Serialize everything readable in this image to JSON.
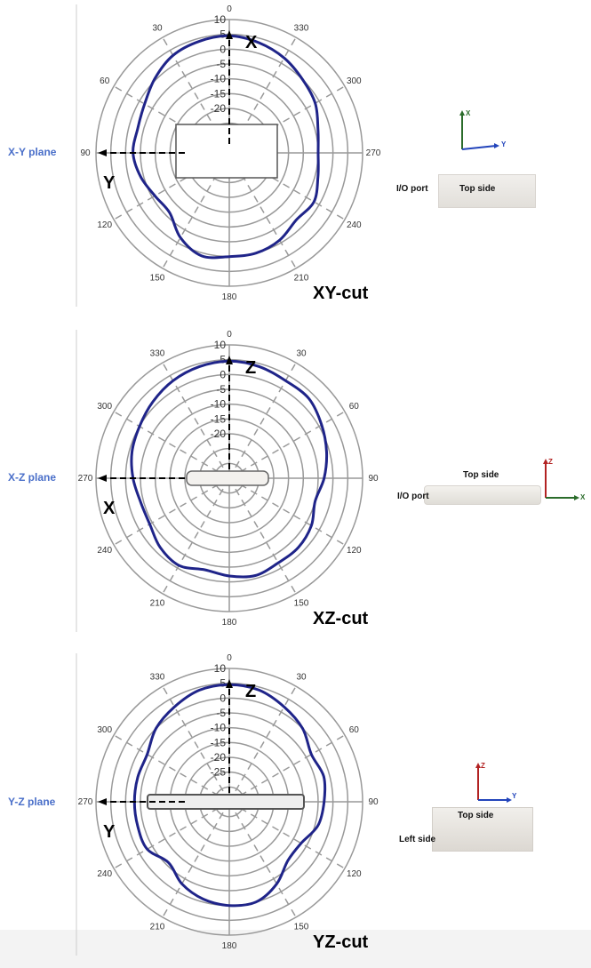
{
  "colors": {
    "plane_label": "#4a6fc9",
    "trace": "#1f2489",
    "grid": "#999999",
    "x_axis": "#2b6c2b",
    "y_axis": "#2244bb",
    "z_axis": "#b22222"
  },
  "chart_data": [
    {
      "type": "polar",
      "plane_label": "X-Y plane",
      "title": "XY-cut",
      "radial_ticks": [
        "10",
        "5",
        "0",
        "-5",
        "-10",
        "-15",
        "-20"
      ],
      "rlim": [
        -35,
        10
      ],
      "angle_direction": "counterclockwise",
      "angle_labels": [
        {
          "angle": 0,
          "label": "0"
        },
        {
          "angle": 30,
          "label": "30"
        },
        {
          "angle": 60,
          "label": "60"
        },
        {
          "angle": 90,
          "label": "90"
        },
        {
          "angle": 120,
          "label": "120"
        },
        {
          "angle": 150,
          "label": "150"
        },
        {
          "angle": 180,
          "label": "180"
        },
        {
          "angle": 210,
          "label": "210"
        },
        {
          "angle": 240,
          "label": "240"
        },
        {
          "angle": 270,
          "label": "270"
        },
        {
          "angle": 300,
          "label": "300"
        },
        {
          "angle": 330,
          "label": "330"
        }
      ],
      "axis_up": "X",
      "axis_side": "Y",
      "angles": [
        0,
        15,
        30,
        45,
        60,
        75,
        90,
        105,
        120,
        135,
        150,
        165,
        180,
        195,
        210,
        225,
        240,
        255,
        270,
        285,
        300,
        315,
        330,
        345
      ],
      "values": [
        4.5,
        4,
        3,
        0.5,
        -2,
        -3,
        -2.5,
        -4,
        -6,
        -6.5,
        -2,
        1,
        0,
        0,
        -1,
        -3,
        -2,
        -4,
        -5,
        -4,
        -1.5,
        0,
        2,
        3.5
      ]
    },
    {
      "type": "polar",
      "plane_label": "X-Z plane",
      "title": "XZ-cut",
      "radial_ticks": [
        "10",
        "5",
        "0",
        "-5",
        "-10",
        "-15",
        "-20"
      ],
      "rlim": [
        -35,
        10
      ],
      "angle_direction": "clockwise",
      "angle_labels": [
        {
          "angle": 0,
          "label": "0"
        },
        {
          "angle": 30,
          "label": "30"
        },
        {
          "angle": 60,
          "label": "60"
        },
        {
          "angle": 90,
          "label": "90"
        },
        {
          "angle": 120,
          "label": "120"
        },
        {
          "angle": 150,
          "label": "150"
        },
        {
          "angle": 180,
          "label": "180"
        },
        {
          "angle": 210,
          "label": "210"
        },
        {
          "angle": 240,
          "label": "240"
        },
        {
          "angle": 270,
          "label": "270"
        },
        {
          "angle": 300,
          "label": "300"
        },
        {
          "angle": 330,
          "label": "330"
        }
      ],
      "axis_up": "Z",
      "axis_side": "X",
      "angles": [
        0,
        15,
        30,
        45,
        60,
        75,
        90,
        105,
        120,
        135,
        150,
        165,
        180,
        195,
        210,
        225,
        240,
        255,
        270,
        285,
        300,
        315,
        330,
        345
      ],
      "values": [
        4.5,
        4,
        3,
        3,
        1,
        -1,
        -3,
        -5,
        -3,
        -2,
        -2,
        -1,
        -2,
        -3,
        -1,
        -2,
        -4,
        -4,
        -2.5,
        -1,
        0,
        1.5,
        3,
        4
      ]
    },
    {
      "type": "polar",
      "plane_label": "Y-Z plane",
      "title": "YZ-cut",
      "radial_ticks": [
        "10",
        "5",
        "0",
        "-5",
        "-10",
        "-15",
        "-20",
        "-25"
      ],
      "rlim": [
        -35,
        10
      ],
      "angle_direction": "clockwise",
      "angle_labels": [
        {
          "angle": 0,
          "label": "0"
        },
        {
          "angle": 30,
          "label": "30"
        },
        {
          "angle": 60,
          "label": "60"
        },
        {
          "angle": 90,
          "label": "90"
        },
        {
          "angle": 120,
          "label": "120"
        },
        {
          "angle": 150,
          "label": "150"
        },
        {
          "angle": 180,
          "label": "180"
        },
        {
          "angle": 210,
          "label": "210"
        },
        {
          "angle": 240,
          "label": "240"
        },
        {
          "angle": 270,
          "label": "270"
        },
        {
          "angle": 300,
          "label": "300"
        },
        {
          "angle": 330,
          "label": "330"
        }
      ],
      "axis_up": "Z",
      "axis_side": "Y",
      "angles": [
        0,
        15,
        30,
        45,
        60,
        75,
        90,
        105,
        120,
        135,
        150,
        165,
        180,
        195,
        210,
        225,
        240,
        255,
        270,
        285,
        300,
        315,
        330,
        345
      ],
      "values": [
        4.5,
        4,
        2,
        0,
        -3,
        -2,
        -3,
        -4,
        -7,
        -7,
        -3,
        0,
        0,
        -1,
        -3,
        -6,
        -3,
        -3,
        -3,
        -3,
        -3,
        0,
        2,
        4
      ]
    }
  ],
  "side_panels": [
    {
      "io_label": "I/O port",
      "top_label": "Top side",
      "triad": {
        "up": "X",
        "right": "Y"
      }
    },
    {
      "io_label": "I/O port",
      "top_label": "Top side",
      "triad": {
        "up": "Z",
        "right": "X"
      }
    },
    {
      "io_label": "Left side",
      "top_label": "Top side",
      "triad": {
        "up": "Z",
        "right": "Y"
      }
    }
  ]
}
